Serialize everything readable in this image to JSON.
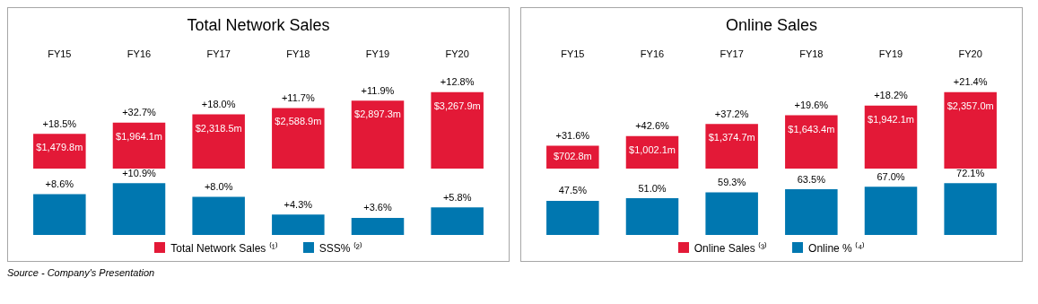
{
  "chart_data": [
    {
      "type": "bar",
      "title": "Total Network Sales",
      "categories": [
        "FY15",
        "FY16",
        "FY17",
        "FY18",
        "FY19",
        "FY20"
      ],
      "legend": "bottom",
      "series": [
        {
          "name": "Total Network Sales ⁽¹⁾",
          "color": "#e31937",
          "values": [
            1479.8,
            1964.1,
            2318.5,
            2588.9,
            2897.3,
            3267.9
          ],
          "value_labels": [
            "$1,479.8m",
            "$1,964.1m",
            "$2,318.5m",
            "$2,588.9m",
            "$2,897.3m",
            "$3,267.9m"
          ]
        }
      ],
      "annotations": [
        {
          "text": "+18.5%",
          "x": "FY15",
          "y": 1479.8
        },
        {
          "text": "+32.7%",
          "x": "FY16",
          "y": 1964.1
        },
        {
          "text": "+18.0%",
          "x": "FY17",
          "y": 2318.5
        },
        {
          "text": "+11.7%",
          "x": "FY18",
          "y": 2588.9
        },
        {
          "text": "+11.9%",
          "x": "FY19",
          "y": 2897.3
        },
        {
          "text": "+12.8%",
          "x": "FY20",
          "y": 3267.9
        }
      ]
    },
    {
      "type": "bar",
      "categories": [
        null,
        null,
        null,
        null,
        null,
        null
      ],
      "legend": "bottom",
      "tick_labels": false,
      "series": [
        {
          "name": "SSS% ⁽²⁾",
          "color": "#0077b0",
          "values": [
            8.6,
            10.9,
            8.0,
            4.3,
            3.6,
            5.8
          ],
          "value_labels": [
            "+8.6%",
            "+10.9%",
            "+8.0%",
            "+4.3%",
            "+3.6%",
            "+5.8%"
          ]
        }
      ],
      "annotations": [
        "Source - Company's Presentation"
      ]
    },
    {
      "type": "bar",
      "title": "Online Sales",
      "categories": [
        "FY15",
        "FY16",
        "FY17",
        "FY18",
        "FY19",
        "FY20"
      ],
      "legend": "bottom",
      "series": [
        {
          "name": "Online Sales ⁽³⁾",
          "color": "#e31937",
          "values": [
            702.8,
            1002.1,
            1374.7,
            1643.4,
            1942.1,
            2357.0
          ],
          "value_labels": [
            "$702.8m",
            "$1,002.1m",
            "$1,374.7m",
            "$1,643.4m",
            "$1,942.1m",
            "$2,357.0m"
          ]
        }
      ],
      "annotations": [
        {
          "text": "+31.6%",
          "x": "FY15",
          "y": 702.8
        },
        {
          "text": "+42.6%",
          "x": "FY16",
          "y": 1002.1
        },
        {
          "text": "+37.2%",
          "x": "FY17",
          "y": 1374.7
        },
        {
          "text": "+19.6%",
          "x": "FY18",
          "y": 1643.4
        },
        {
          "text": "+18.2%",
          "x": "FY19",
          "y": 1942.1
        },
        {
          "text": "+21.4%",
          "x": "FY20",
          "y": 2357.0
        }
      ]
    },
    {
      "type": "bar",
      "categories": [
        null,
        null,
        null,
        null,
        null,
        null
      ],
      "legend": "bottom",
      "tick_labels": false,
      "series": [
        {
          "name": "Online % ⁽⁴⁾",
          "color": "#0077b0",
          "values": [
            47.5,
            51.0,
            59.3,
            63.5,
            67.0,
            72.1
          ],
          "value_labels": [
            "47.5%",
            "51.0%",
            "59.3%",
            "63.5%",
            "67.0%",
            "72.1%"
          ]
        }
      ]
    }
  ]
}
